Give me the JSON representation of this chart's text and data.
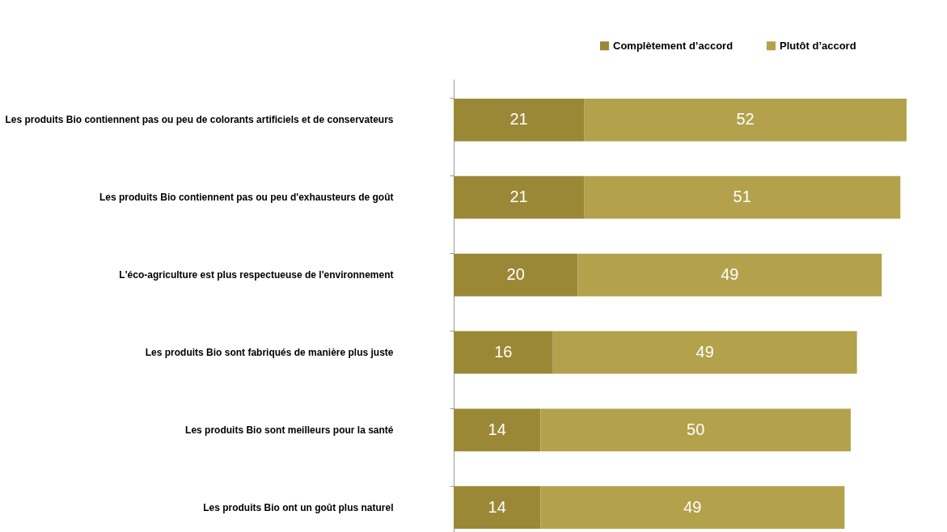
{
  "chart_data": {
    "type": "bar",
    "orientation": "horizontal",
    "stacked": true,
    "categories": [
      "Les produits Bio contiennent pas ou peu de colorants artificiels et de conservateurs",
      "Les produits Bio contiennent  pas ou peu d'exhausteurs de goût",
      "L'éco-agriculture est plus respectueuse de l'environnement",
      "Les produits Bio sont fabriqués de manière plus juste",
      "Les produits Bio sont meilleurs pour la santé",
      "Les produits Bio ont un goût plus naturel"
    ],
    "series": [
      {
        "name": "Complètement d’accord",
        "color": "#9b8836",
        "values": [
          21,
          21,
          20,
          16,
          14,
          14
        ]
      },
      {
        "name": "Plutôt d’accord",
        "color": "#b3a14c",
        "values": [
          52,
          51,
          49,
          49,
          50,
          49
        ]
      }
    ],
    "xlim": [
      0,
      73
    ],
    "data_labels": true,
    "legend": "top right",
    "tick_labels": "y",
    "grid": false
  }
}
